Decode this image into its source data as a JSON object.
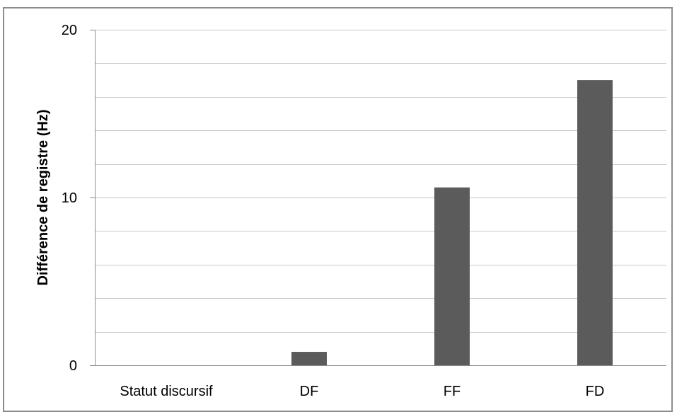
{
  "chart_data": {
    "type": "bar",
    "categories": [
      "Statut discursif",
      "DF",
      "FF",
      "FD"
    ],
    "values": [
      0,
      0.8,
      10.6,
      17.0
    ],
    "title": "",
    "xlabel": "",
    "ylabel": "Différence de registre (Hz)",
    "ylim": [
      0,
      20
    ],
    "yticks": [
      0,
      10,
      20
    ],
    "gridlines": [
      0,
      2,
      4,
      6,
      8,
      10,
      12,
      14,
      16,
      18,
      20
    ],
    "grid": true,
    "legend": "none",
    "bar_color": "#5b5b5b",
    "grid_color": "#c8c8c8",
    "axis_color": "#8c8c8c"
  }
}
